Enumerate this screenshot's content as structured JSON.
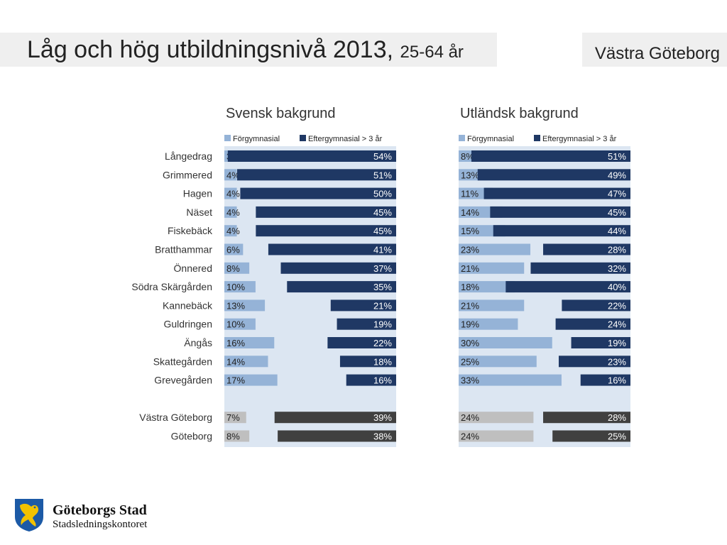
{
  "header": {
    "title": "Låg och hög utbildningsnivå 2013,",
    "subtitle": "25-64 år",
    "region": "Västra Göteborg"
  },
  "footer": {
    "org_name": "Göteborgs Stad",
    "org_dept": "Stadsledningskontoret"
  },
  "colors": {
    "panel_bg": "#dce6f2",
    "low_edu": "#95b3d7",
    "high_edu": "#1f3864",
    "total_low": "#bfbfbf",
    "total_high": "#404040"
  },
  "chart_data": [
    {
      "type": "bar",
      "title": "Svensk bakgrund",
      "categories": [
        "Långedrag",
        "Grimmered",
        "Hagen",
        "Näset",
        "Fiskebäck",
        "Bratthammar",
        "Önnered",
        "Södra Skärgården",
        "Kannebäck",
        "Guldringen",
        "Ängås",
        "Skattegården",
        "Grevegården",
        "Västra Göteborg",
        "Göteborg"
      ],
      "series": [
        {
          "name": "Förgymnasial",
          "values": [
            3,
            4,
            4,
            4,
            4,
            6,
            8,
            10,
            13,
            10,
            16,
            14,
            17,
            7,
            8
          ]
        },
        {
          "name": "Eftergymnasial > 3 år",
          "values": [
            54,
            51,
            50,
            45,
            45,
            41,
            37,
            35,
            21,
            19,
            22,
            18,
            16,
            39,
            38
          ]
        }
      ],
      "unit": "%",
      "legend": "top"
    },
    {
      "type": "bar",
      "title": "Utländsk bakgrund",
      "categories": [
        "Långedrag",
        "Grimmered",
        "Hagen",
        "Näset",
        "Fiskebäck",
        "Bratthammar",
        "Önnered",
        "Södra Skärgården",
        "Kannebäck",
        "Guldringen",
        "Ängås",
        "Skattegården",
        "Grevegården",
        "Västra Göteborg",
        "Göteborg"
      ],
      "series": [
        {
          "name": "Förgymnasial",
          "values": [
            8,
            13,
            11,
            14,
            15,
            23,
            21,
            18,
            21,
            19,
            30,
            25,
            33,
            24,
            24
          ]
        },
        {
          "name": "Eftergymnasial > 3 år",
          "values": [
            51,
            49,
            47,
            45,
            44,
            28,
            32,
            40,
            22,
            24,
            19,
            23,
            16,
            28,
            25
          ]
        }
      ],
      "unit": "%",
      "legend": "top"
    }
  ]
}
